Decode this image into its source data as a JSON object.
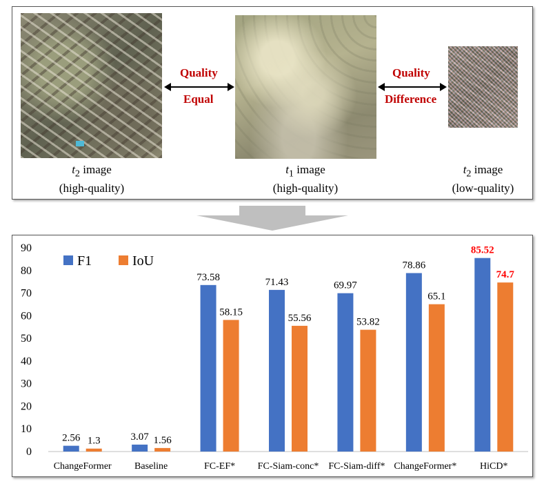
{
  "top_panel": {
    "images": [
      {
        "caption_var": "t",
        "caption_sub": "2",
        "caption_word": " image",
        "caption_quality": "(high-quality)"
      },
      {
        "caption_var": "t",
        "caption_sub": "1",
        "caption_word": " image",
        "caption_quality": "(high-quality)"
      },
      {
        "caption_var": "t",
        "caption_sub": "2",
        "caption_word": " image",
        "caption_quality": "(low-quality)"
      }
    ],
    "left_relation": {
      "line1": "Quality",
      "line2": "Equal"
    },
    "right_relation": {
      "line1": "Quality",
      "line2": "Difference"
    },
    "relation_color": "#c00000"
  },
  "chart_data": {
    "type": "bar",
    "categories": [
      "ChangeFormer",
      "Baseline",
      "FC-EF*",
      "FC-Siam-conc*",
      "FC-Siam-diff*",
      "ChangeFormer*",
      "HiCD*"
    ],
    "series": [
      {
        "name": "F1",
        "color": "#4472c4",
        "values": [
          2.56,
          3.07,
          73.58,
          71.43,
          69.97,
          78.86,
          85.52
        ],
        "labels": [
          "2.56",
          "3.07",
          "73.58",
          "71.43",
          "69.97",
          "78.86",
          "85.52"
        ]
      },
      {
        "name": "IoU",
        "color": "#ed7d31",
        "values": [
          1.3,
          1.56,
          58.15,
          55.56,
          53.82,
          65.1,
          74.7
        ],
        "labels": [
          "1.3",
          "1.56",
          "58.15",
          "55.56",
          "53.82",
          "65.1",
          "74.7"
        ]
      }
    ],
    "highlight_category": "HiCD*",
    "highlight_color": "#ff0000",
    "ylim": [
      0,
      90
    ],
    "yticks": [
      0,
      10,
      20,
      30,
      40,
      50,
      60,
      70,
      80,
      90
    ],
    "legend_position": "top-left",
    "grid": false
  }
}
